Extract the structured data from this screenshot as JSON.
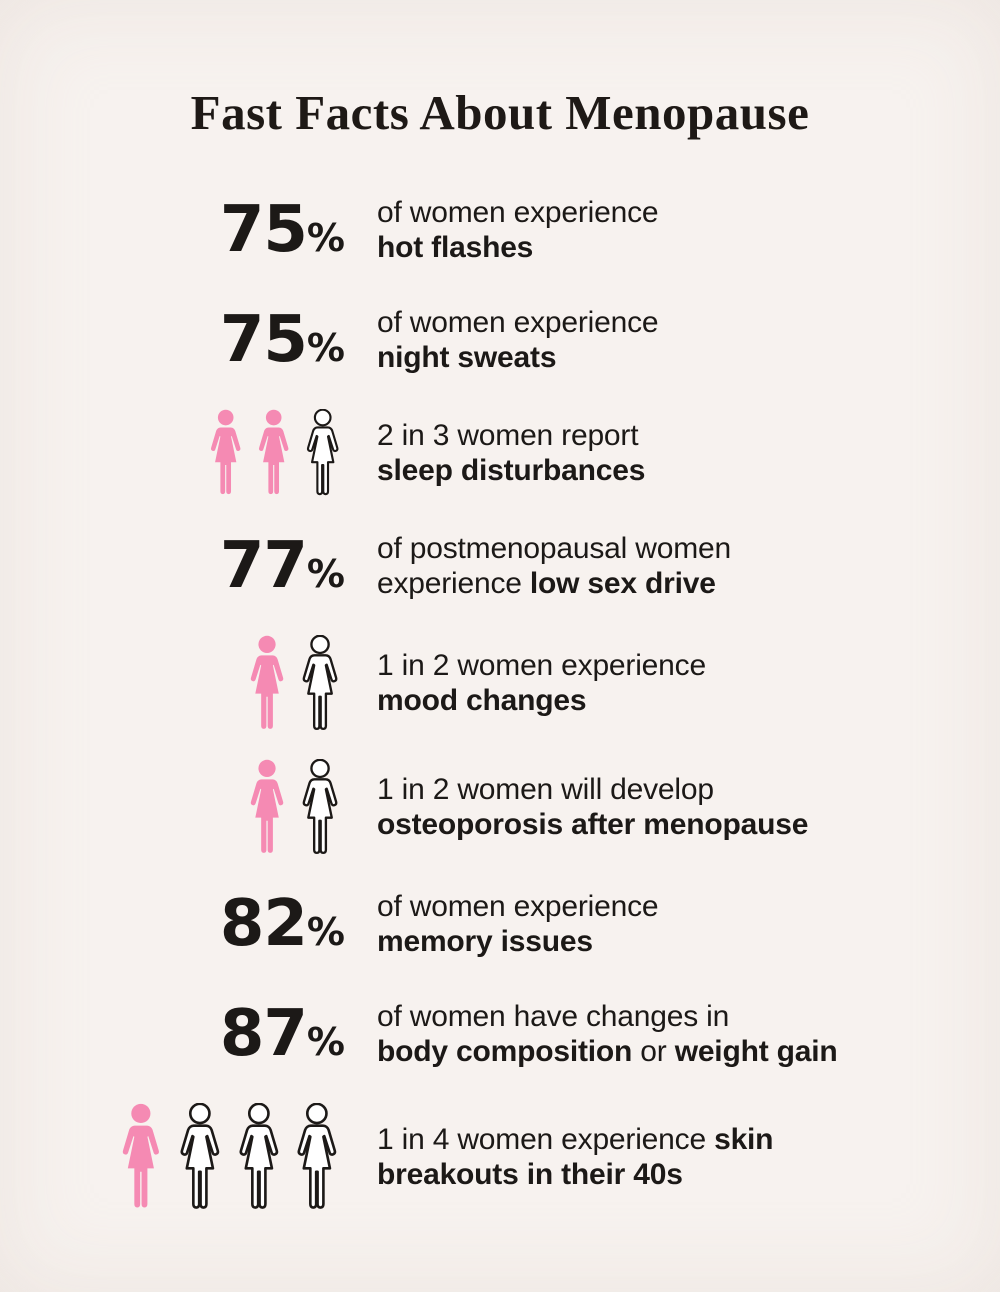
{
  "header": {
    "title": "Fast Facts About Menopause"
  },
  "colors": {
    "background": "#f7f2ef",
    "text": "#1c1917",
    "pink": "#f58ab3",
    "icon_outline": "#1c1917",
    "icon_empty_fill": "#ffffff"
  },
  "rows": [
    {
      "kind": "stat",
      "value": "75",
      "unit": "%",
      "lines": [
        [
          {
            "t": "of women experience",
            "b": false
          }
        ],
        [
          {
            "t": "hot flashes",
            "b": true
          }
        ]
      ]
    },
    {
      "kind": "stat",
      "value": "75",
      "unit": "%",
      "lines": [
        [
          {
            "t": "of women experience",
            "b": false
          }
        ],
        [
          {
            "t": "night sweats",
            "b": true
          }
        ]
      ]
    },
    {
      "kind": "icons",
      "icon_name": "woman-icon",
      "filled": 2,
      "total": 3,
      "lines": [
        [
          {
            "t": "2 in 3 women report",
            "b": false
          }
        ],
        [
          {
            "t": "sleep disturbances",
            "b": true
          }
        ]
      ]
    },
    {
      "kind": "stat",
      "value": "77",
      "unit": "%",
      "lines": [
        [
          {
            "t": "of postmenopausal women",
            "b": false
          }
        ],
        [
          {
            "t": "experience ",
            "b": false
          },
          {
            "t": "low sex drive",
            "b": true
          }
        ]
      ]
    },
    {
      "kind": "icons",
      "icon_name": "woman-icon",
      "filled": 1,
      "total": 2,
      "lines": [
        [
          {
            "t": "1 in 2 women experience",
            "b": false
          }
        ],
        [
          {
            "t": "mood changes",
            "b": true
          }
        ]
      ]
    },
    {
      "kind": "icons",
      "icon_name": "woman-icon",
      "filled": 1,
      "total": 2,
      "lines": [
        [
          {
            "t": "1 in 2 women will develop",
            "b": false
          }
        ],
        [
          {
            "t": "osteoporosis after menopause",
            "b": true
          }
        ]
      ]
    },
    {
      "kind": "stat",
      "value": "82",
      "unit": "%",
      "lines": [
        [
          {
            "t": "of women experience",
            "b": false
          }
        ],
        [
          {
            "t": "memory issues",
            "b": true
          }
        ]
      ]
    },
    {
      "kind": "stat",
      "value": "87",
      "unit": "%",
      "lines": [
        [
          {
            "t": "of women have changes in",
            "b": false
          }
        ],
        [
          {
            "t": "body composition",
            "b": true
          },
          {
            "t": " or ",
            "b": false
          },
          {
            "t": "weight gain",
            "b": true
          }
        ]
      ]
    },
    {
      "kind": "icons",
      "icon_name": "woman-icon",
      "filled": 1,
      "total": 4,
      "lines": [
        [
          {
            "t": "1 in 4 women experience ",
            "b": false
          },
          {
            "t": "skin",
            "b": true
          }
        ],
        [
          {
            "t": "breakouts in their 40s",
            "b": true
          }
        ]
      ]
    }
  ],
  "chart_data": {
    "type": "table",
    "title": "Fast Facts About Menopause",
    "legend_position": "none",
    "rows": [
      {
        "stat": "75%",
        "fact": "of women experience hot flashes"
      },
      {
        "stat": "75%",
        "fact": "of women experience night sweats"
      },
      {
        "stat": "2 in 3",
        "fact": "women report sleep disturbances",
        "pictogram": {
          "filled": 2,
          "total": 3
        }
      },
      {
        "stat": "77%",
        "fact": "of postmenopausal women experience low sex drive"
      },
      {
        "stat": "1 in 2",
        "fact": "women experience mood changes",
        "pictogram": {
          "filled": 1,
          "total": 2
        }
      },
      {
        "stat": "1 in 2",
        "fact": "women will develop osteoporosis after menopause",
        "pictogram": {
          "filled": 1,
          "total": 2
        }
      },
      {
        "stat": "82%",
        "fact": "of women experience memory issues"
      },
      {
        "stat": "87%",
        "fact": "of women have changes in body composition or weight gain"
      },
      {
        "stat": "1 in 4",
        "fact": "women experience skin breakouts in their 40s",
        "pictogram": {
          "filled": 1,
          "total": 4
        }
      }
    ]
  }
}
